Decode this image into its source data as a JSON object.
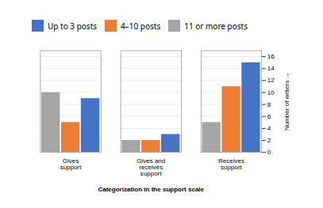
{
  "chart_data": {
    "type": "bar",
    "xlabel": "Categorization in the support scale",
    "ylabel": "Number of writers",
    "categories": [
      "Gives\nsupport",
      "Gives and\nreceives\nsupport",
      "Receives\nsupport"
    ],
    "series": [
      {
        "name": "Up to 3 posts",
        "color": "#4472C4",
        "values": [
          9,
          3,
          15
        ]
      },
      {
        "name": "4–10 posts",
        "color": "#ED7D31",
        "values": [
          5,
          2,
          11
        ]
      },
      {
        "name": "11 or more posts",
        "color": "#A5A5A5",
        "values": [
          10,
          2,
          5
        ]
      }
    ],
    "ylim": [
      0,
      17
    ],
    "yticks": [
      0,
      2,
      4,
      6,
      8,
      10,
      12,
      14,
      16
    ],
    "grid": true,
    "legend": "upper left"
  }
}
